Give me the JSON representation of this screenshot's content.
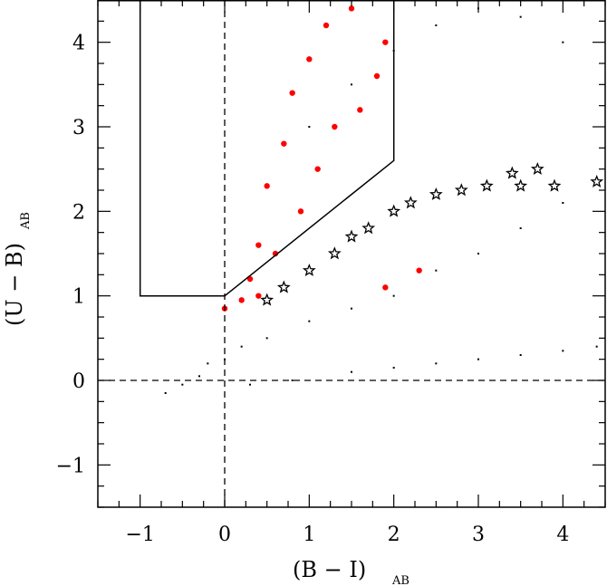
{
  "chart_data": {
    "type": "scatter",
    "xlabel": "(B − I)",
    "xlabel_subscript": "AB",
    "ylabel": "(U − B)",
    "ylabel_subscript": "AB",
    "xlim": [
      -1.5,
      4.5
    ],
    "ylim": [
      -1.5,
      4.5
    ],
    "x_ticks": [
      -1,
      0,
      1,
      2,
      3,
      4
    ],
    "y_ticks": [
      -1,
      0,
      1,
      2,
      3,
      4
    ],
    "x_tick_labels": [
      "−1",
      "0",
      "1",
      "2",
      "3",
      "4"
    ],
    "y_tick_labels": [
      "−1",
      "0",
      "1",
      "2",
      "3",
      "4"
    ],
    "reference_lines": [
      {
        "orientation": "vertical",
        "value": 0,
        "style": "dashed"
      },
      {
        "orientation": "horizontal",
        "value": 0,
        "style": "dashed"
      }
    ],
    "selection_region": [
      [
        -1,
        4.5
      ],
      [
        -1,
        1
      ],
      [
        0,
        1
      ],
      [
        2,
        2.6
      ],
      [
        2,
        4.5
      ]
    ],
    "series": [
      {
        "marker": "dot",
        "color": "#000000",
        "values": [
          [
            -0.7,
            -0.15
          ],
          [
            -0.5,
            -0.05
          ],
          [
            -0.3,
            0.05
          ],
          [
            -0.2,
            0.2
          ],
          [
            0,
            0.25
          ],
          [
            0.2,
            0.4
          ],
          [
            0.5,
            0.5
          ],
          [
            1,
            0.7
          ],
          [
            1.5,
            0.85
          ],
          [
            2,
            1
          ],
          [
            2.5,
            1.3
          ],
          [
            3,
            1.5
          ],
          [
            3.5,
            1.8
          ],
          [
            4,
            2.1
          ],
          [
            0.3,
            -0.05
          ],
          [
            0.8,
            0
          ],
          [
            1.5,
            0.1
          ],
          [
            2,
            0.15
          ],
          [
            2.5,
            0.2
          ],
          [
            3,
            0.25
          ],
          [
            3.5,
            0.3
          ],
          [
            4,
            0.35
          ],
          [
            4.4,
            0.4
          ],
          [
            1,
            3
          ],
          [
            1.5,
            3.5
          ],
          [
            2,
            3.9
          ],
          [
            2.5,
            4.2
          ],
          [
            3,
            4.4
          ],
          [
            3.5,
            4.3
          ],
          [
            4,
            4.0
          ]
        ]
      },
      {
        "marker": "circle",
        "color": "#ff0000",
        "values": [
          [
            0,
            0.85
          ],
          [
            0.2,
            0.95
          ],
          [
            0.3,
            1.2
          ],
          [
            0.4,
            1.6
          ],
          [
            0.5,
            2.3
          ],
          [
            0.7,
            2.8
          ],
          [
            0.8,
            3.4
          ],
          [
            1,
            3.8
          ],
          [
            1.2,
            4.2
          ],
          [
            1.5,
            4.4
          ],
          [
            0.6,
            1.5
          ],
          [
            0.9,
            2.0
          ],
          [
            1.1,
            2.5
          ],
          [
            1.3,
            3.0
          ],
          [
            1.6,
            3.2
          ],
          [
            1.8,
            3.6
          ],
          [
            1.9,
            4.0
          ],
          [
            0.4,
            1.0
          ],
          [
            1.9,
            1.1
          ],
          [
            2.3,
            1.3
          ]
        ]
      },
      {
        "marker": "star",
        "color": "#000000",
        "values": [
          [
            0.5,
            0.95
          ],
          [
            0.7,
            1.1
          ],
          [
            1,
            1.3
          ],
          [
            1.3,
            1.5
          ],
          [
            1.5,
            1.7
          ],
          [
            1.7,
            1.8
          ],
          [
            2,
            2.0
          ],
          [
            2.2,
            2.1
          ],
          [
            2.5,
            2.2
          ],
          [
            2.8,
            2.25
          ],
          [
            3.1,
            2.3
          ],
          [
            3.5,
            2.3
          ],
          [
            3.9,
            2.3
          ],
          [
            4.4,
            2.35
          ],
          [
            3.4,
            2.45
          ],
          [
            3.7,
            2.5
          ]
        ]
      }
    ]
  }
}
